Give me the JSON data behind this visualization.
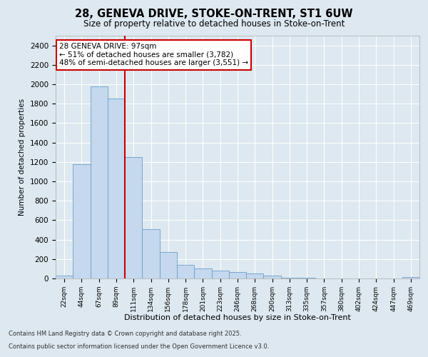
{
  "title": "28, GENEVA DRIVE, STOKE-ON-TRENT, ST1 6UW",
  "subtitle": "Size of property relative to detached houses in Stoke-on-Trent",
  "xlabel": "Distribution of detached houses by size in Stoke-on-Trent",
  "ylabel": "Number of detached properties",
  "property_label": "28 GENEVA DRIVE: 97sqm",
  "annotation_line1": "← 51% of detached houses are smaller (3,782)",
  "annotation_line2": "48% of semi-detached houses are larger (3,551) →",
  "bar_color": "#c5d8ed",
  "bar_edge_color": "#6a9fcb",
  "vline_color": "#cc0000",
  "background_color": "#dde8f0",
  "annotation_box_color": "#ffffff",
  "annotation_box_edge": "#cc0000",
  "categories": [
    "22sqm",
    "44sqm",
    "67sqm",
    "89sqm",
    "111sqm",
    "134sqm",
    "156sqm",
    "178sqm",
    "201sqm",
    "223sqm",
    "246sqm",
    "268sqm",
    "290sqm",
    "313sqm",
    "335sqm",
    "357sqm",
    "380sqm",
    "402sqm",
    "424sqm",
    "447sqm",
    "469sqm"
  ],
  "values": [
    30,
    1180,
    1980,
    1850,
    1250,
    510,
    270,
    140,
    105,
    80,
    65,
    55,
    30,
    8,
    4,
    2,
    1,
    1,
    0,
    0,
    15
  ],
  "ylim": [
    0,
    2500
  ],
  "yticks": [
    0,
    200,
    400,
    600,
    800,
    1000,
    1200,
    1400,
    1600,
    1800,
    2000,
    2200,
    2400
  ],
  "vline_x_index": 3.5,
  "footer_line1": "Contains HM Land Registry data © Crown copyright and database right 2025.",
  "footer_line2": "Contains public sector information licensed under the Open Government Licence v3.0."
}
